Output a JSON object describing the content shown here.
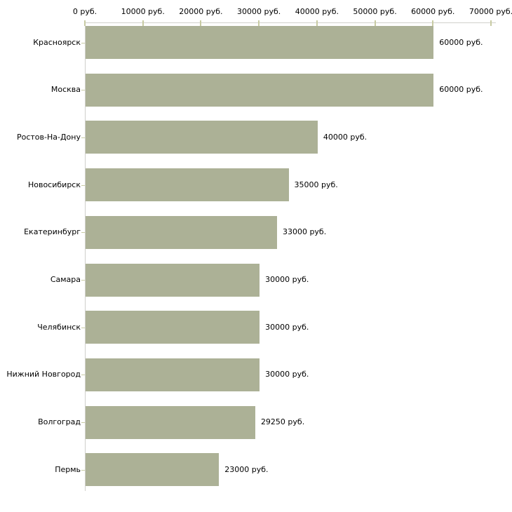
{
  "chart_data": {
    "type": "bar",
    "orientation": "horizontal",
    "title": "",
    "xlabel": "",
    "ylabel": "",
    "unit": "руб.",
    "xlim": [
      0,
      70000
    ],
    "grid": false,
    "legend": false,
    "categories": [
      "Красноярск",
      "Москва",
      "Ростов-На-Дону",
      "Новосибирск",
      "Екатеринбург",
      "Самара",
      "Челябинск",
      "Нижний Новгород",
      "Волгоград",
      "Пермь"
    ],
    "values": [
      60000,
      60000,
      40000,
      35000,
      33000,
      30000,
      30000,
      30000,
      29250,
      23000
    ],
    "value_labels": [
      "60000 руб.",
      "60000 руб.",
      "40000 руб.",
      "35000 руб.",
      "33000 руб.",
      "30000 руб.",
      "30000 руб.",
      "30000 руб.",
      "29250 руб.",
      "23000 руб."
    ],
    "x_ticks": [
      0,
      10000,
      20000,
      30000,
      40000,
      50000,
      60000,
      70000
    ],
    "x_tick_labels": [
      "0 руб.",
      "10000 руб.",
      "20000 руб.",
      "30000 руб.",
      "40000 руб.",
      "50000 руб.",
      "60000 руб.",
      "70000 руб."
    ],
    "colors": {
      "bar_fill": "#acb196",
      "axis_line": "#d0d0cb",
      "tick_mark": "#c8cba3",
      "text": "#000000",
      "background": "#ffffff"
    }
  }
}
